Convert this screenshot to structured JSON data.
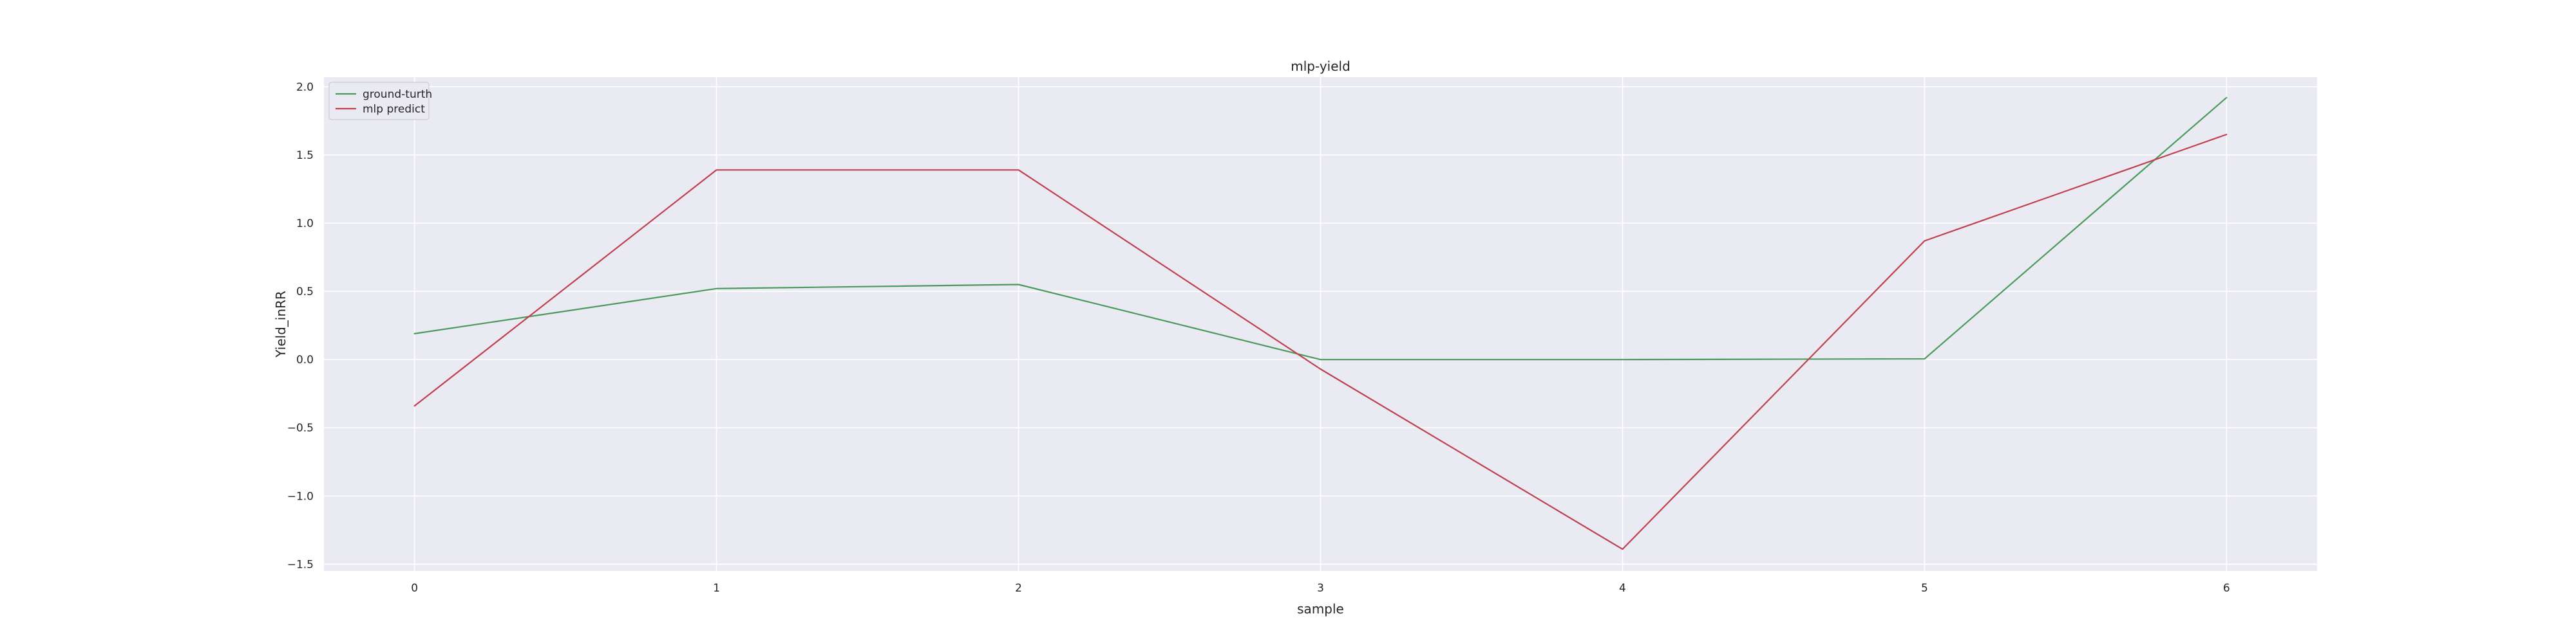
{
  "chart_data": {
    "type": "line",
    "title": "mlp-yield",
    "xlabel": "sample",
    "ylabel": "Yield_inRR",
    "x": [
      0,
      1,
      2,
      3,
      4,
      5,
      6
    ],
    "xlim": [
      -0.3,
      6.3
    ],
    "ylim": [
      -1.55,
      2.07
    ],
    "xticks": [
      0,
      1,
      2,
      3,
      4,
      5,
      6
    ],
    "xtick_labels": [
      "0",
      "1",
      "2",
      "3",
      "4",
      "5",
      "6"
    ],
    "yticks": [
      -1.5,
      -1.0,
      -0.5,
      0.0,
      0.5,
      1.0,
      1.5,
      2.0
    ],
    "ytick_labels": [
      "−1.5",
      "−1.0",
      "−0.5",
      "0.0",
      "0.5",
      "1.0",
      "1.5",
      "2.0"
    ],
    "grid": true,
    "legend_position": "top-left",
    "series": [
      {
        "name": "ground-turth",
        "color": "#4a9a5d",
        "values": [
          0.19,
          0.52,
          0.55,
          0.0,
          0.0,
          0.005,
          1.92
        ]
      },
      {
        "name": "mlp predict",
        "color": "#c0404f",
        "values": [
          -0.34,
          1.39,
          1.39,
          -0.07,
          -1.39,
          0.87,
          1.65
        ]
      }
    ]
  }
}
